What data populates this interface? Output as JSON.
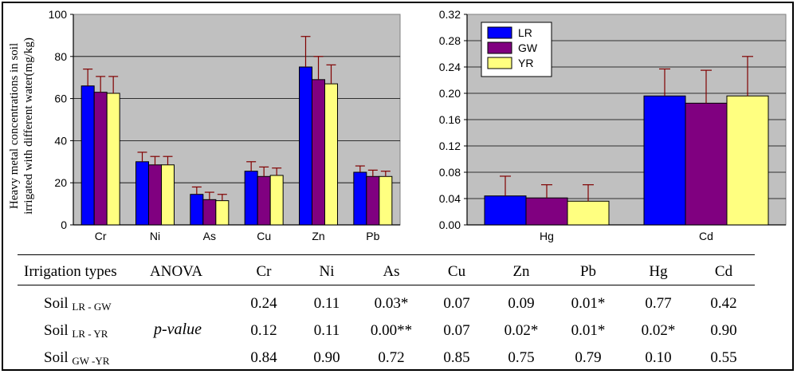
{
  "colors": {
    "LR": "#0000ff",
    "GW": "#800080",
    "YR": "#ffff80",
    "plot_bg": "#c0c0c0",
    "error_bar": "#800000"
  },
  "chart_data": [
    {
      "type": "bar",
      "ylabel": "Heavy metal concentrations in soil irrigated with different water(mg/kg)",
      "categories": [
        "Cr",
        "Ni",
        "As",
        "Cu",
        "Zn",
        "Pb"
      ],
      "ylim": [
        0,
        100
      ],
      "yticks": [
        "0",
        "20",
        "40",
        "60",
        "80",
        "100"
      ],
      "grid": true,
      "series": [
        {
          "name": "LR",
          "values": [
            66,
            30,
            14.5,
            25.5,
            75,
            25
          ],
          "errors": [
            8,
            4.5,
            3.5,
            4.5,
            14.5,
            3
          ]
        },
        {
          "name": "GW",
          "values": [
            63,
            28.5,
            12,
            23,
            69,
            23
          ],
          "errors": [
            7.5,
            4,
            3.5,
            4.5,
            11,
            3
          ]
        },
        {
          "name": "YR",
          "values": [
            62.5,
            28.5,
            11.5,
            23.5,
            67,
            23
          ],
          "errors": [
            8,
            4,
            3,
            3.5,
            9,
            2.5
          ]
        }
      ]
    },
    {
      "type": "bar",
      "categories": [
        "Hg",
        "Cd"
      ],
      "ylim": [
        0,
        0.32
      ],
      "yticks": [
        "0.00",
        "0.04",
        "0.08",
        "0.12",
        "0.16",
        "0.20",
        "0.24",
        "0.28",
        "0.32"
      ],
      "grid": true,
      "legend": {
        "position": "top-left",
        "entries": [
          "LR",
          "GW",
          "YR"
        ]
      },
      "series": [
        {
          "name": "LR",
          "values": [
            0.044,
            0.196
          ],
          "errors": [
            0.03,
            0.041
          ]
        },
        {
          "name": "GW",
          "values": [
            0.041,
            0.185
          ],
          "errors": [
            0.02,
            0.05
          ]
        },
        {
          "name": "YR",
          "values": [
            0.036,
            0.196
          ],
          "errors": [
            0.025,
            0.06
          ]
        }
      ]
    }
  ],
  "table": {
    "header_irrigation": "Irrigation types",
    "header_anova": "ANOVA",
    "columns": [
      "Cr",
      "Ni",
      "As",
      "Cu",
      "Zn",
      "Pb",
      "Hg",
      "Cd"
    ],
    "pvalue_label": "p-value",
    "rows": [
      {
        "prefix": "Soil",
        "sub": "LR - GW",
        "values": [
          "0.24",
          "0.11",
          "0.03*",
          "0.07",
          "0.09",
          "0.01*",
          "0.77",
          "0.42"
        ]
      },
      {
        "prefix": "Soil",
        "sub": "LR - YR",
        "values": [
          "0.12",
          "0.11",
          "0.00**",
          "0.07",
          "0.02*",
          "0.01*",
          "0.02*",
          "0.90"
        ]
      },
      {
        "prefix": "Soil",
        "sub": "GW -YR",
        "values": [
          "0.84",
          "0.90",
          "0.72",
          "0.85",
          "0.75",
          "0.79",
          "0.10",
          "0.55"
        ]
      }
    ]
  }
}
